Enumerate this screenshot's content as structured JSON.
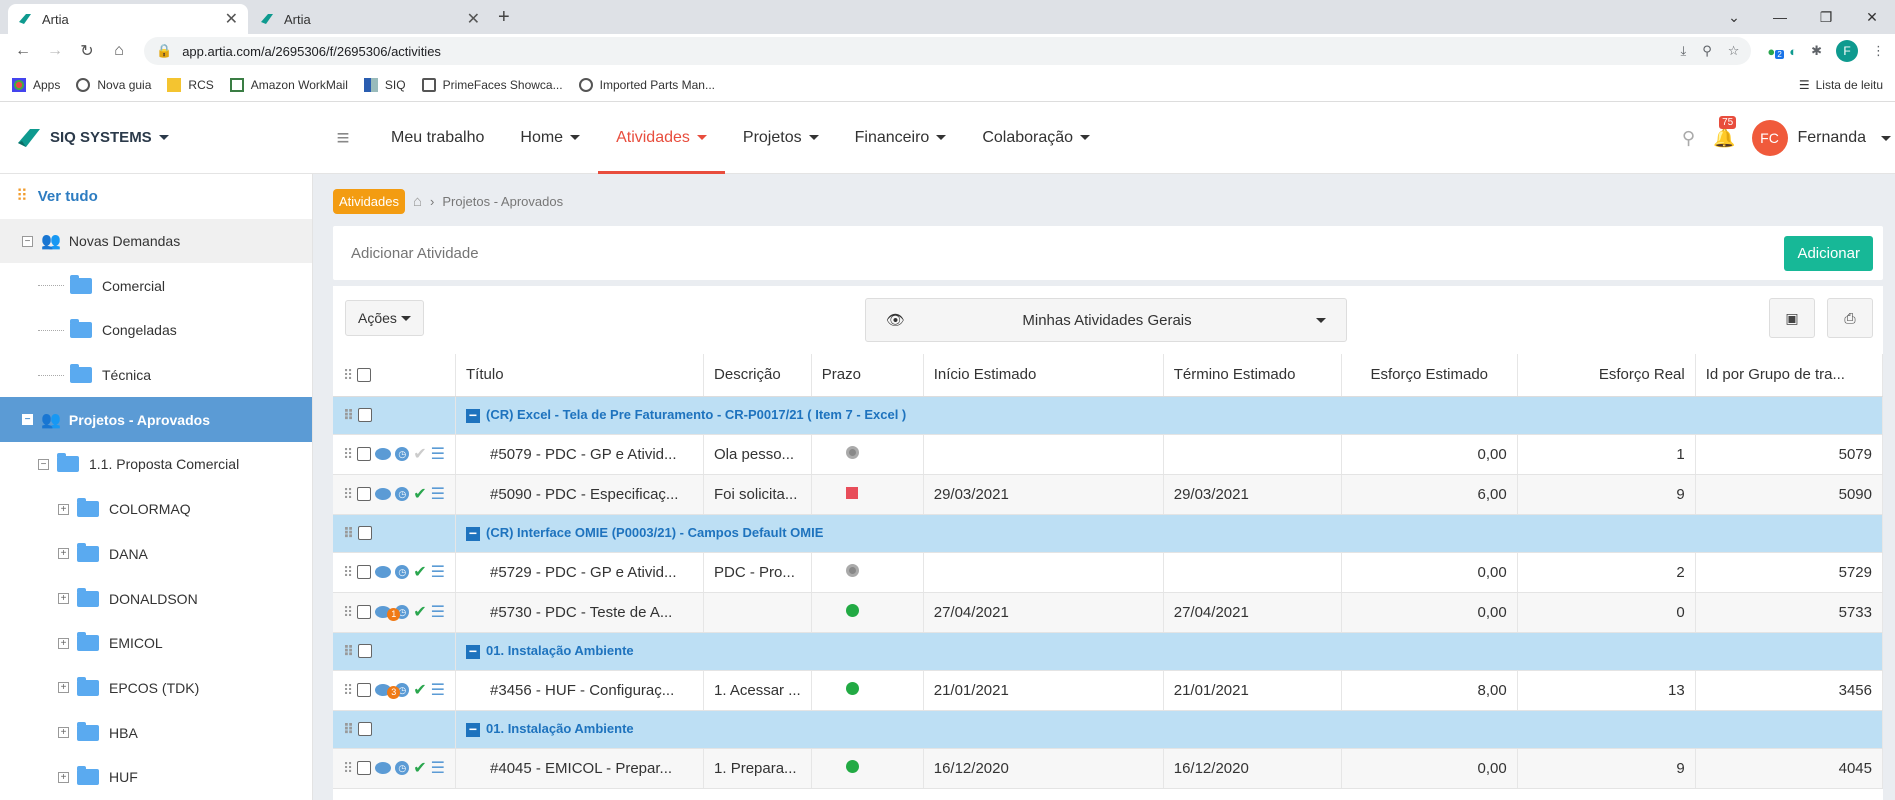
{
  "browser": {
    "tabs": [
      {
        "title": "Artia"
      },
      {
        "title": "Artia"
      }
    ],
    "url": "app.artia.com/a/2695306/f/2695306/activities",
    "bookmarks": [
      "Apps",
      "Nova guia",
      "RCS",
      "Amazon WorkMail",
      "SIQ",
      "PrimeFaces Showca...",
      "Imported Parts Man..."
    ],
    "reading_list": "Lista de leitu",
    "profile_initial": "F",
    "ext_badge": "2"
  },
  "header": {
    "brand": "SIQ SYSTEMS",
    "menu": [
      {
        "label": "Meu trabalho",
        "caret": false,
        "active": false
      },
      {
        "label": "Home",
        "caret": true,
        "active": false
      },
      {
        "label": "Atividades",
        "caret": true,
        "active": true
      },
      {
        "label": "Projetos",
        "caret": true,
        "active": false
      },
      {
        "label": "Financeiro",
        "caret": true,
        "active": false
      },
      {
        "label": "Colaboração",
        "caret": true,
        "active": false
      }
    ],
    "notif_count": "75",
    "user_initials": "FC",
    "user_name": "Fernanda"
  },
  "sidebar": {
    "view_all": "Ver tudo",
    "items": [
      {
        "label": "Novas Demandas",
        "level": 0,
        "type": "group",
        "style": "gray",
        "toggle": "−"
      },
      {
        "label": "Comercial",
        "level": 1,
        "type": "folder"
      },
      {
        "label": "Congeladas",
        "level": 1,
        "type": "folder"
      },
      {
        "label": "Técnica",
        "level": 1,
        "type": "folder"
      },
      {
        "label": "Projetos - Aprovados",
        "level": 0,
        "type": "group",
        "style": "blue",
        "toggle": "−"
      },
      {
        "label": "1.1. Proposta Comercial",
        "level": 1,
        "type": "folder",
        "toggle": "−"
      },
      {
        "label": "COLORMAQ",
        "level": 2,
        "type": "folder",
        "toggle": "+"
      },
      {
        "label": "DANA",
        "level": 2,
        "type": "folder",
        "toggle": "+"
      },
      {
        "label": "DONALDSON",
        "level": 2,
        "type": "folder",
        "toggle": "+"
      },
      {
        "label": "EMICOL",
        "level": 2,
        "type": "folder",
        "toggle": "+"
      },
      {
        "label": "EPCOS (TDK)",
        "level": 2,
        "type": "folder",
        "toggle": "+"
      },
      {
        "label": "HBA",
        "level": 2,
        "type": "folder",
        "toggle": "+"
      },
      {
        "label": "HUF",
        "level": 2,
        "type": "folder",
        "toggle": "+"
      }
    ]
  },
  "breadcrumb": {
    "tag": "Atividades",
    "path": "Projetos - Aprovados"
  },
  "add_activity": {
    "placeholder": "Adicionar Atividade",
    "button": "Adicionar"
  },
  "toolbar": {
    "actions": "Ações",
    "view": "Minhas Atividades Gerais"
  },
  "table": {
    "columns": [
      "Título",
      "Descrição",
      "Prazo",
      "Início Estimado",
      "Término Estimado",
      "Esforço Estimado",
      "Esforço Real",
      "Id por Grupo de tra..."
    ],
    "rows": [
      {
        "type": "group",
        "title": "(CR) Excel - Tela de Pre Faturamento - CR-P0017/21 ( Item 7 - Excel )"
      },
      {
        "type": "task",
        "title": "#5079 - PDC - GP e Ativid...",
        "desc": "Ola pesso...",
        "prazo": "gray",
        "inicio": "",
        "termino": "",
        "est": "0,00",
        "real": "1",
        "id": "5079",
        "done": false,
        "comments": ""
      },
      {
        "type": "task",
        "title": "#5090 - PDC - Especificaç...",
        "desc": "Foi solicita...",
        "prazo": "red",
        "inicio": "29/03/2021",
        "termino": "29/03/2021",
        "est": "6,00",
        "real": "9",
        "id": "5090",
        "done": true,
        "comments": ""
      },
      {
        "type": "group",
        "title": "(CR) Interface OMIE (P0003/21) - Campos Default OMIE"
      },
      {
        "type": "task",
        "title": "#5729 - PDC - GP e Ativid...",
        "desc": "PDC - Pro...",
        "prazo": "gray",
        "inicio": "",
        "termino": "",
        "est": "0,00",
        "real": "2",
        "id": "5729",
        "done": true,
        "comments": ""
      },
      {
        "type": "task",
        "title": "#5730 - PDC - Teste de A...",
        "desc": "",
        "prazo": "green",
        "inicio": "27/04/2021",
        "termino": "27/04/2021",
        "est": "0,00",
        "real": "0",
        "id": "5733",
        "done": true,
        "comments": "1"
      },
      {
        "type": "group",
        "title": "01. Instalação Ambiente"
      },
      {
        "type": "task",
        "title": "#3456 - HUF - Configuraç...",
        "desc": "1. Acessar ...",
        "prazo": "green",
        "inicio": "21/01/2021",
        "termino": "21/01/2021",
        "est": "8,00",
        "real": "13",
        "id": "3456",
        "done": true,
        "comments": "3"
      },
      {
        "type": "group",
        "title": "01. Instalação Ambiente"
      },
      {
        "type": "task",
        "title": "#4045 - EMICOL - Prepar...",
        "desc": "1. Prepara...",
        "prazo": "green",
        "inicio": "16/12/2020",
        "termino": "16/12/2020",
        "est": "0,00",
        "real": "9",
        "id": "4045",
        "done": true,
        "comments": ""
      }
    ]
  },
  "colors": {
    "accent": "#e84d3d",
    "primary": "#17b897",
    "group_bg": "#bddff4",
    "sidebar_active": "#5b9bd5"
  }
}
